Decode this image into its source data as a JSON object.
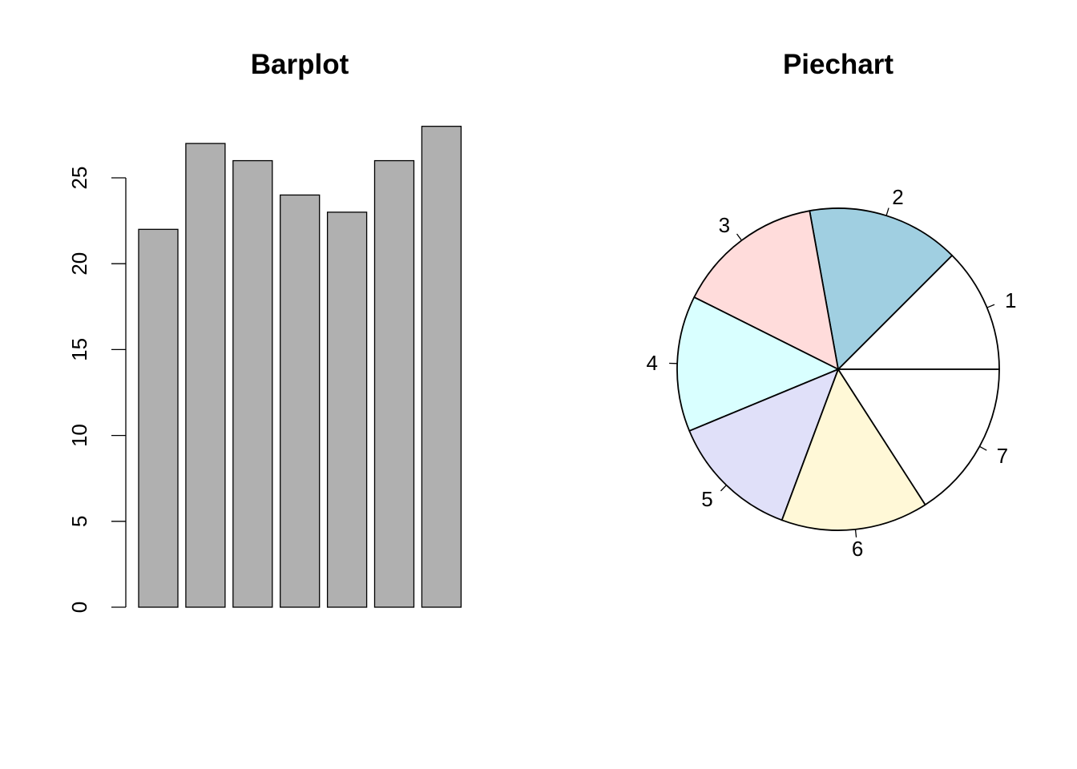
{
  "chart_data": [
    {
      "type": "bar",
      "title": "Barplot",
      "categories": [
        "",
        "",
        "",
        "",
        "",
        "",
        ""
      ],
      "values": [
        22,
        27,
        26,
        24,
        23,
        26,
        28
      ],
      "ylim": [
        0,
        28
      ],
      "yticks": [
        "0",
        "5",
        "10",
        "15",
        "20",
        "25"
      ],
      "bar_color": "#b0b0b0",
      "grid": false
    },
    {
      "type": "pie",
      "title": "Piechart",
      "labels": [
        "1",
        "2",
        "3",
        "4",
        "5",
        "6",
        "7"
      ],
      "values": [
        22,
        27,
        26,
        24,
        23,
        26,
        28
      ],
      "colors": [
        "#ffffff",
        "#a0cfe1",
        "#ffdcdb",
        "#d9ffff",
        "#e0e0f9",
        "#fff8d7",
        "#ffffff"
      ],
      "start_angle_deg": 0,
      "direction": "counterclockwise"
    }
  ]
}
